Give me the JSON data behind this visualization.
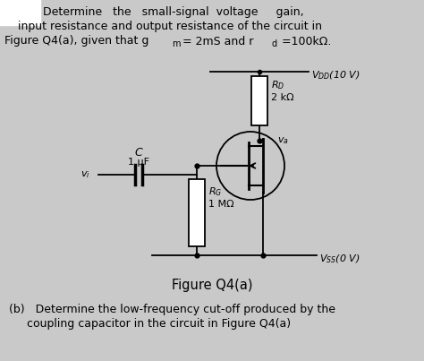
{
  "bg_color": "#c9c9c9",
  "text_color": "#000000",
  "fig_caption": "Figure Q4(a)",
  "part_b": "(b)   Determine the low-frequency cut-off produced by the",
  "part_b2": "coupling capacitor in the circuit in Figure Q4(a)",
  "vdd_label": "$V_{DD}$(10 V)",
  "vss_label": "$V_{SS}$(0 V)",
  "rd_line1": "$R_D$",
  "rd_line2": "2 kΩ",
  "rg_line1": "$R_G$",
  "rg_line2": "1 MΩ",
  "c_label": "C",
  "c_val": "1 μF",
  "vi_label": "$v_i$",
  "vo_label": "$v_a$"
}
